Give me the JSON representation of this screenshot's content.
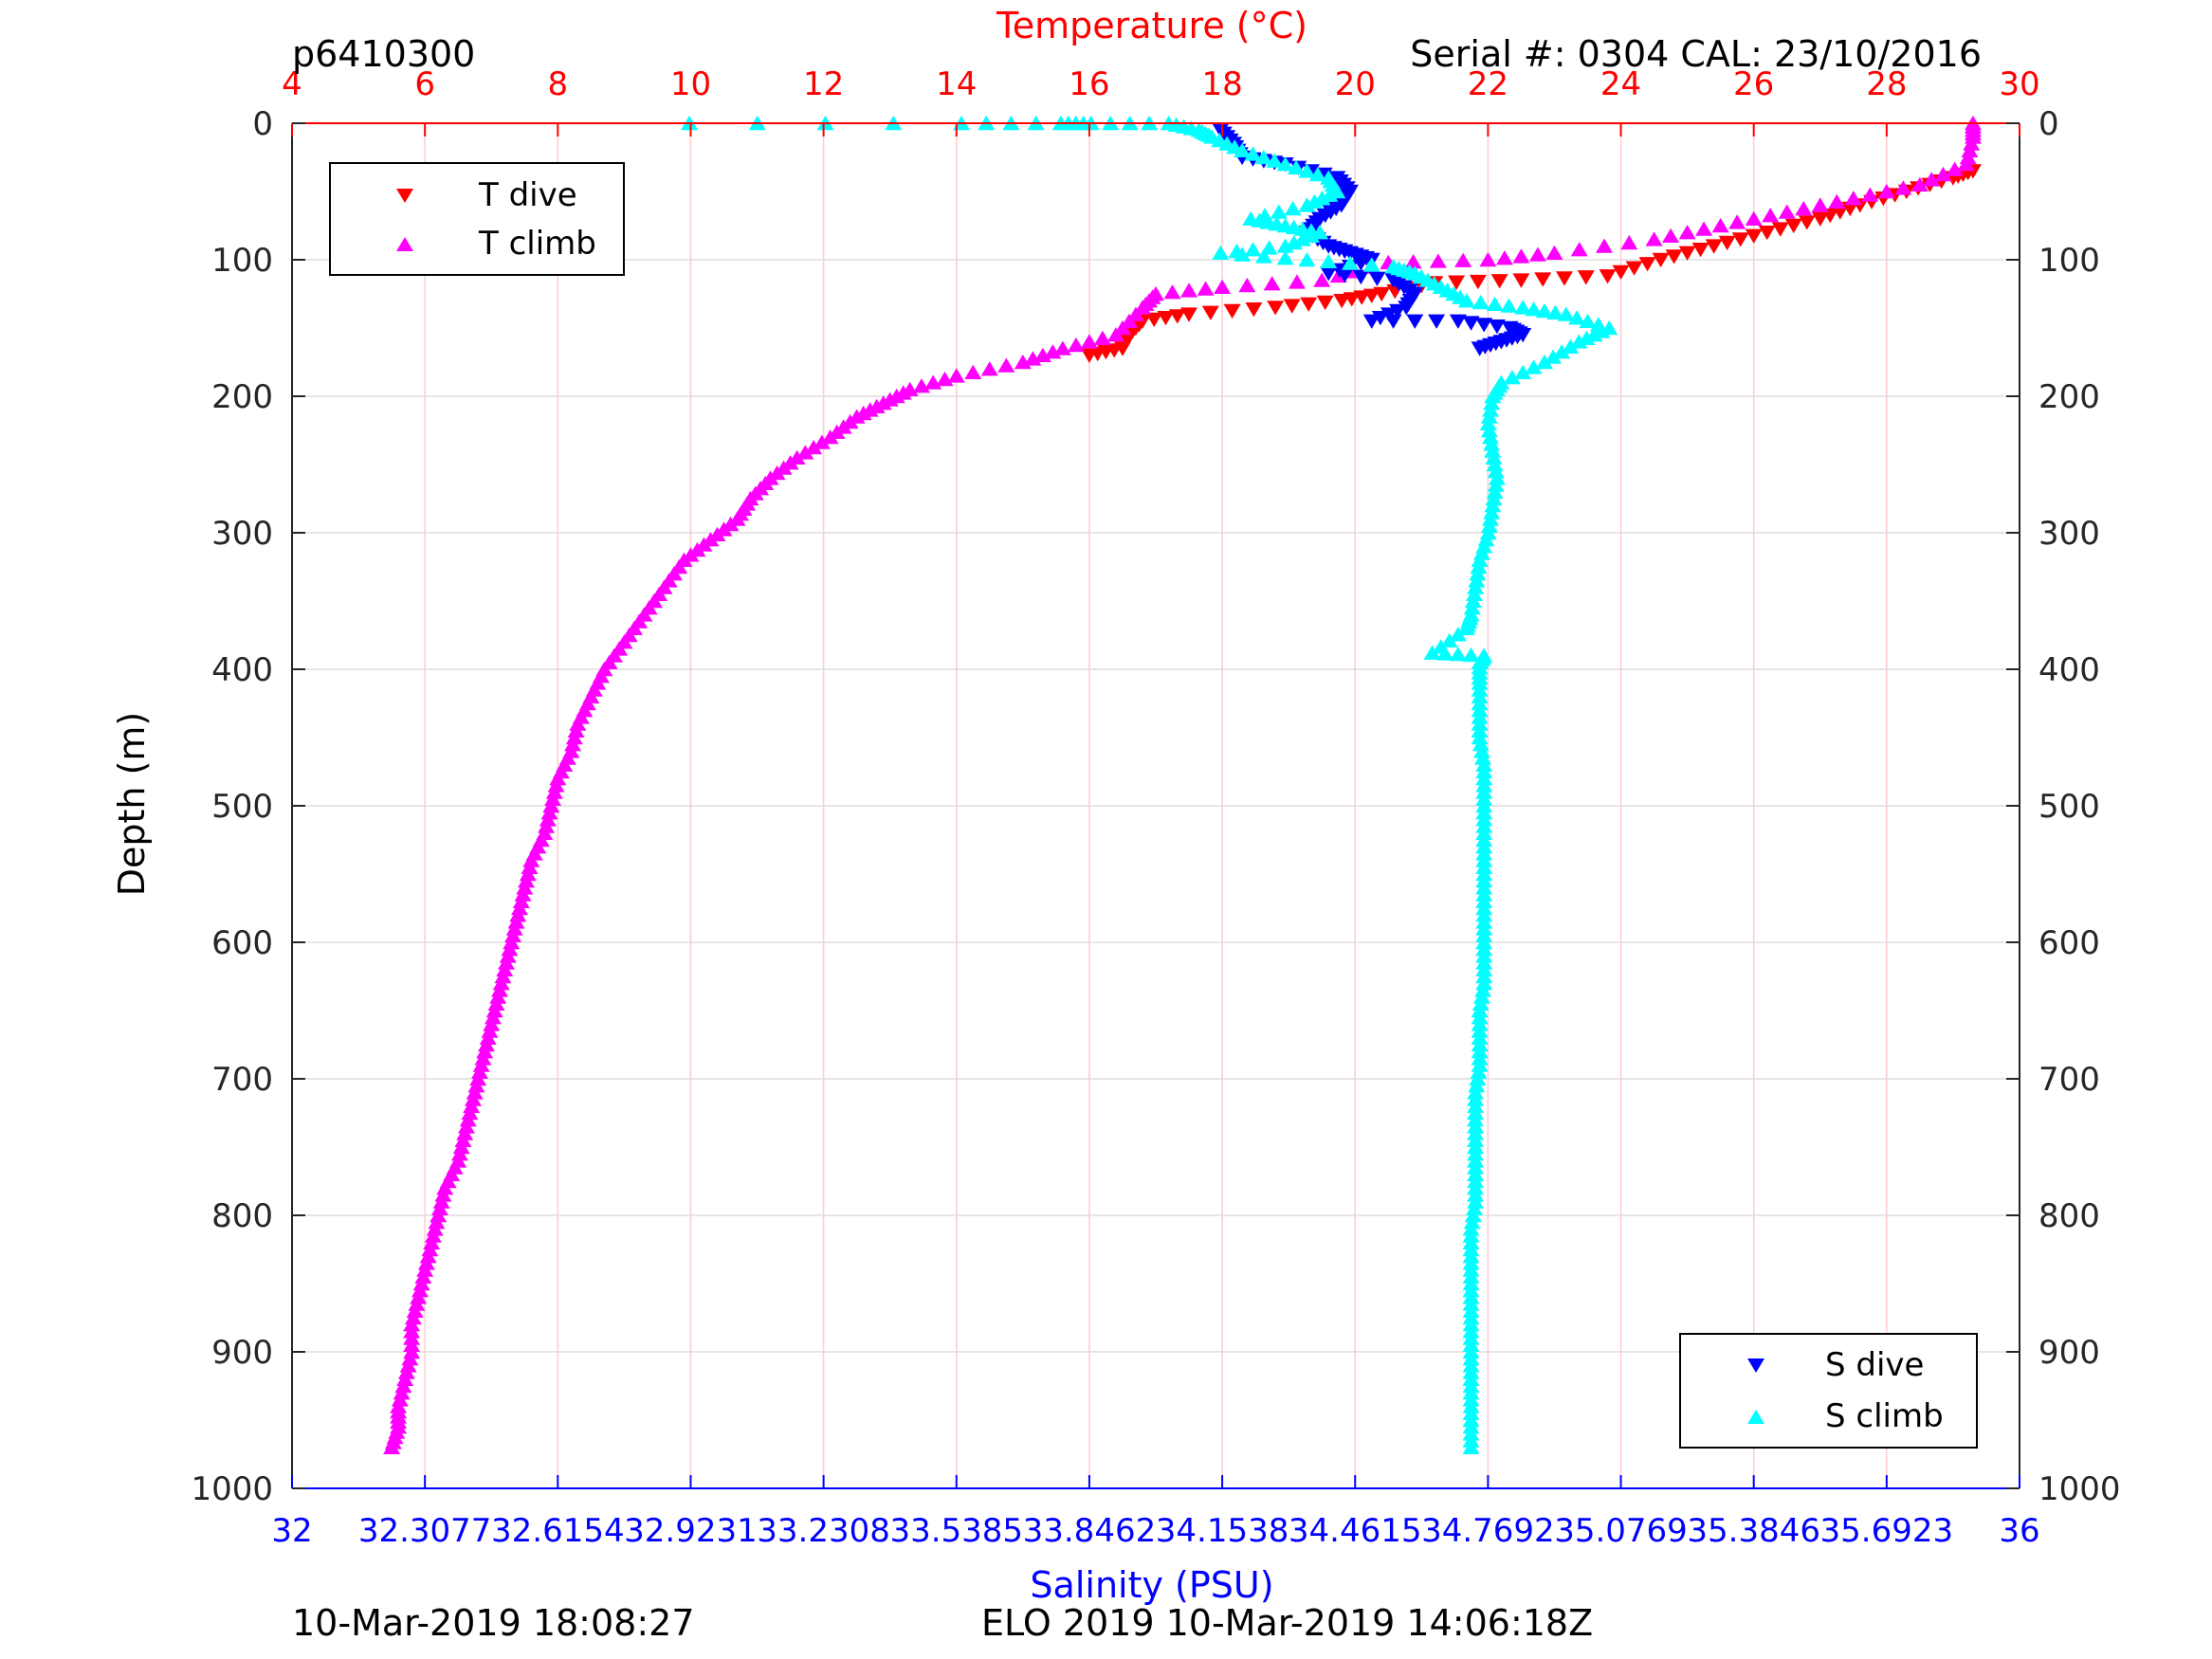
{
  "header": {
    "profile_id": "p6410300",
    "serial": "Serial #: 0304  CAL: 23/10/2016"
  },
  "footer": {
    "left": "10-Mar-2019 18:08:27",
    "right": "ELO 2019 10-Mar-2019 14:06:18Z"
  },
  "colors": {
    "t_dive": "#ff0000",
    "t_climb": "#ff00ff",
    "s_dive": "#0000ff",
    "s_climb": "#00ffff",
    "temp_axis": "#ff0000",
    "sal_axis": "#0000ff",
    "grid_v": "#ffcccc",
    "grid_h": "#dddddd"
  },
  "chart_data": {
    "type": "scatter",
    "title": "",
    "top_axis": {
      "label": "Temperature (°C)",
      "range": [
        4,
        30
      ],
      "ticks": [
        "4",
        "6",
        "8",
        "10",
        "12",
        "14",
        "16",
        "18",
        "20",
        "22",
        "24",
        "26",
        "28",
        "30"
      ]
    },
    "bottom_axis": {
      "label": "Salinity (PSU)",
      "range": [
        32,
        36
      ],
      "ticks": [
        "32",
        "32.3077",
        "32.6154",
        "32.9231",
        "33.2308",
        "33.5385",
        "33.8462",
        "34.1538",
        "34.4615",
        "34.7692",
        "35.0769",
        "35.3846",
        "35.6923",
        "36"
      ]
    },
    "y_axis": {
      "label": "Depth (m)",
      "range": [
        0,
        1000
      ],
      "reversed": true,
      "ticks": [
        "0",
        "100",
        "200",
        "300",
        "400",
        "500",
        "600",
        "700",
        "800",
        "900",
        "1000"
      ]
    },
    "grid": true,
    "legend_top": {
      "position": "top-left",
      "entries": [
        "T dive",
        "T climb"
      ]
    },
    "legend_bottom": {
      "position": "bottom-right",
      "entries": [
        "S dive",
        "S climb"
      ]
    },
    "series": [
      {
        "name": "T dive",
        "axis": "temperature",
        "marker": "triangle-down",
        "color": "#ff0000",
        "points": [
          [
            29.3,
            35
          ],
          [
            29.0,
            40
          ],
          [
            28.3,
            50
          ],
          [
            27.6,
            60
          ],
          [
            27.0,
            70
          ],
          [
            26.2,
            80
          ],
          [
            25.4,
            90
          ],
          [
            24.6,
            100
          ],
          [
            23.8,
            112
          ],
          [
            22.5,
            115
          ],
          [
            21.2,
            117
          ],
          [
            20.4,
            125
          ],
          [
            19.8,
            130
          ],
          [
            18.8,
            135
          ],
          [
            17.5,
            140
          ],
          [
            16.8,
            145
          ],
          [
            16.6,
            155
          ],
          [
            16.5,
            165
          ],
          [
            16.0,
            170
          ]
        ]
      },
      {
        "name": "T climb",
        "axis": "temperature",
        "marker": "triangle-up",
        "color": "#ff00ff",
        "points": [
          [
            29.3,
            0
          ],
          [
            29.3,
            10
          ],
          [
            29.2,
            30
          ],
          [
            28.5,
            45
          ],
          [
            27.5,
            55
          ],
          [
            26.5,
            65
          ],
          [
            25.5,
            75
          ],
          [
            24.5,
            85
          ],
          [
            23.0,
            95
          ],
          [
            22.0,
            100
          ],
          [
            20.5,
            102
          ],
          [
            19.5,
            115
          ],
          [
            18.0,
            120
          ],
          [
            17.0,
            125
          ],
          [
            16.8,
            135
          ],
          [
            16.4,
            155
          ],
          [
            15.6,
            165
          ],
          [
            15.0,
            175
          ],
          [
            14.0,
            185
          ],
          [
            13.3,
            195
          ],
          [
            12.9,
            205
          ],
          [
            12.5,
            215
          ],
          [
            12.1,
            230
          ],
          [
            11.6,
            245
          ],
          [
            11.2,
            260
          ],
          [
            10.9,
            275
          ],
          [
            10.7,
            290
          ],
          [
            10.3,
            305
          ],
          [
            9.9,
            320
          ],
          [
            9.6,
            340
          ],
          [
            9.3,
            360
          ],
          [
            9.0,
            380
          ],
          [
            8.7,
            400
          ],
          [
            8.5,
            420
          ],
          [
            8.3,
            440
          ],
          [
            8.2,
            460
          ],
          [
            8.0,
            480
          ],
          [
            7.9,
            500
          ],
          [
            7.8,
            520
          ],
          [
            7.6,
            540
          ],
          [
            7.5,
            560
          ],
          [
            7.4,
            580
          ],
          [
            7.3,
            600
          ],
          [
            7.2,
            620
          ],
          [
            7.1,
            640
          ],
          [
            7.0,
            660
          ],
          [
            6.9,
            680
          ],
          [
            6.8,
            700
          ],
          [
            6.7,
            720
          ],
          [
            6.6,
            740
          ],
          [
            6.5,
            760
          ],
          [
            6.3,
            780
          ],
          [
            6.2,
            800
          ],
          [
            6.1,
            820
          ],
          [
            6.0,
            840
          ],
          [
            5.9,
            860
          ],
          [
            5.8,
            880
          ],
          [
            5.8,
            900
          ],
          [
            5.7,
            920
          ],
          [
            5.6,
            940
          ],
          [
            5.6,
            955
          ],
          [
            5.5,
            970
          ]
        ]
      },
      {
        "name": "S dive",
        "axis": "salinity",
        "marker": "triangle-down",
        "color": "#0000ff",
        "points": [
          [
            34.15,
            5
          ],
          [
            34.18,
            15
          ],
          [
            34.2,
            25
          ],
          [
            34.3,
            30
          ],
          [
            34.42,
            40
          ],
          [
            34.45,
            50
          ],
          [
            34.43,
            60
          ],
          [
            34.38,
            70
          ],
          [
            34.35,
            80
          ],
          [
            34.4,
            90
          ],
          [
            34.45,
            95
          ],
          [
            34.5,
            100
          ],
          [
            34.4,
            110
          ],
          [
            34.55,
            115
          ],
          [
            34.6,
            125
          ],
          [
            34.58,
            135
          ],
          [
            34.5,
            145
          ],
          [
            34.7,
            145
          ],
          [
            34.82,
            150
          ],
          [
            34.85,
            155
          ],
          [
            34.8,
            160
          ],
          [
            34.75,
            165
          ]
        ]
      },
      {
        "name": "S climb",
        "axis": "salinity",
        "marker": "triangle-up",
        "color": "#00ffff",
        "points": [
          [
            32.92,
            0
          ],
          [
            33.55,
            0
          ],
          [
            33.78,
            0
          ],
          [
            33.85,
            0
          ],
          [
            34.03,
            0
          ],
          [
            34.1,
            5
          ],
          [
            34.13,
            10
          ],
          [
            34.2,
            20
          ],
          [
            34.3,
            30
          ],
          [
            34.4,
            40
          ],
          [
            34.42,
            50
          ],
          [
            34.35,
            60
          ],
          [
            34.22,
            70
          ],
          [
            34.3,
            75
          ],
          [
            34.38,
            80
          ],
          [
            34.3,
            90
          ],
          [
            34.15,
            95
          ],
          [
            34.35,
            100
          ],
          [
            34.55,
            105
          ],
          [
            34.6,
            110
          ],
          [
            34.66,
            120
          ],
          [
            34.72,
            130
          ],
          [
            34.85,
            135
          ],
          [
            34.95,
            140
          ],
          [
            35.05,
            150
          ],
          [
            34.98,
            160
          ],
          [
            34.9,
            175
          ],
          [
            34.8,
            190
          ],
          [
            34.78,
            200
          ],
          [
            34.77,
            220
          ],
          [
            34.78,
            240
          ],
          [
            34.79,
            260
          ],
          [
            34.78,
            280
          ],
          [
            34.77,
            300
          ],
          [
            34.75,
            320
          ],
          [
            34.74,
            340
          ],
          [
            34.73,
            360
          ],
          [
            34.72,
            370
          ],
          [
            34.64,
            388
          ],
          [
            34.76,
            390
          ],
          [
            34.75,
            395
          ],
          [
            34.75,
            410
          ],
          [
            34.75,
            430
          ],
          [
            34.75,
            450
          ],
          [
            34.76,
            470
          ],
          [
            34.76,
            490
          ],
          [
            34.76,
            510
          ],
          [
            34.76,
            530
          ],
          [
            34.76,
            550
          ],
          [
            34.76,
            570
          ],
          [
            34.76,
            590
          ],
          [
            34.76,
            610
          ],
          [
            34.76,
            630
          ],
          [
            34.75,
            650
          ],
          [
            34.75,
            670
          ],
          [
            34.75,
            690
          ],
          [
            34.74,
            710
          ],
          [
            34.74,
            730
          ],
          [
            34.74,
            750
          ],
          [
            34.74,
            770
          ],
          [
            34.74,
            790
          ],
          [
            34.73,
            810
          ],
          [
            34.73,
            830
          ],
          [
            34.73,
            850
          ],
          [
            34.73,
            870
          ],
          [
            34.73,
            890
          ],
          [
            34.73,
            910
          ],
          [
            34.73,
            930
          ],
          [
            34.73,
            950
          ],
          [
            34.73,
            970
          ]
        ]
      }
    ]
  }
}
